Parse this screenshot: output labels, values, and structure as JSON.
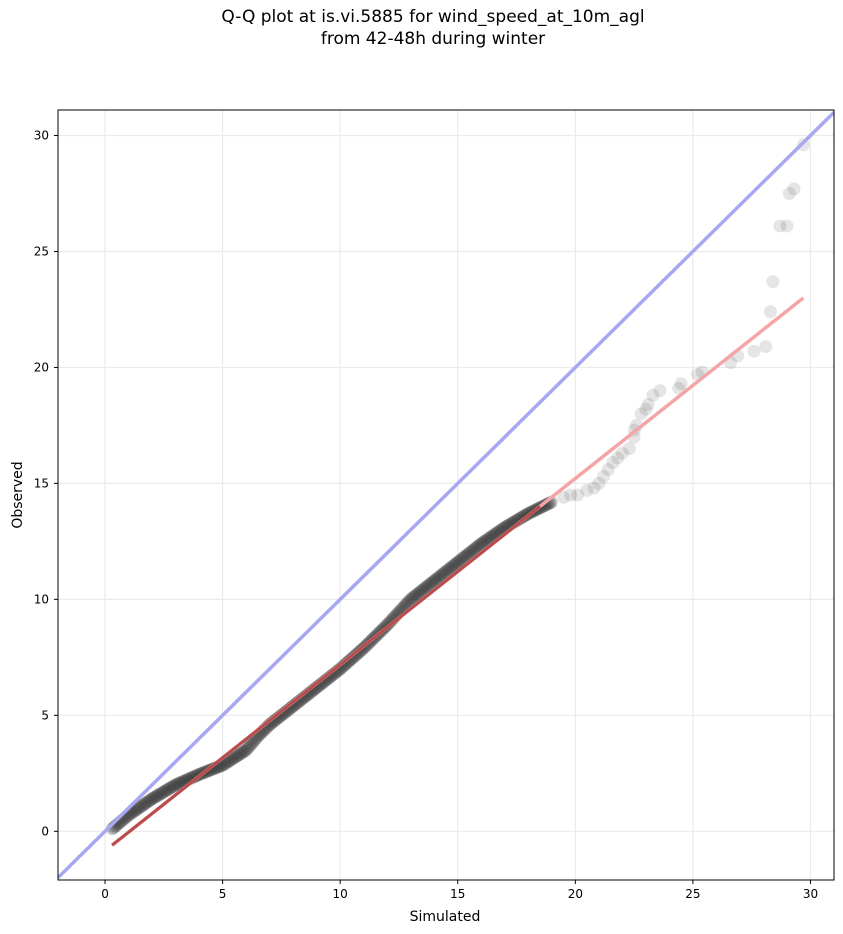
{
  "chart_data": {
    "type": "scatter",
    "title_lines": [
      "Q-Q plot at is.vi.5885 for wind_speed_at_10m_agl",
      "from 42-48h during winter"
    ],
    "xlabel": "Simulated",
    "ylabel": "Observed",
    "xlim": [
      -2,
      31
    ],
    "ylim": [
      -2.1,
      31.1
    ],
    "xticks": [
      0,
      5,
      10,
      15,
      20,
      25,
      30
    ],
    "yticks": [
      0,
      5,
      10,
      15,
      20,
      25,
      30
    ],
    "grid": true,
    "colors": {
      "points": "#333333",
      "identity_line": "#a8a8f2",
      "fit_line": "#f4a6a6",
      "dense_fit_line": "#8b0000",
      "grid": "#ebebeb"
    },
    "identity_line": {
      "x": [
        -2,
        31
      ],
      "y": [
        -2,
        31
      ]
    },
    "fit_line": {
      "x": [
        0.3,
        29.7
      ],
      "y": [
        -0.6,
        23.0
      ]
    },
    "qq_curve": {
      "x": [
        0.3,
        1,
        2,
        3,
        4,
        5,
        6,
        6.5,
        7,
        8,
        9,
        10,
        11,
        12,
        13,
        14,
        15,
        16,
        17,
        18,
        19
      ],
      "y": [
        0.1,
        0.7,
        1.4,
        2.0,
        2.45,
        2.85,
        3.5,
        4.1,
        4.6,
        5.4,
        6.2,
        7.0,
        7.9,
        8.9,
        10.0,
        10.8,
        11.6,
        12.4,
        13.1,
        13.7,
        14.2
      ]
    },
    "tail_points": [
      [
        19.5,
        14.4
      ],
      [
        19.8,
        14.5
      ],
      [
        20.1,
        14.5
      ],
      [
        20.5,
        14.7
      ],
      [
        20.8,
        14.8
      ],
      [
        21.0,
        15.0
      ],
      [
        21.2,
        15.3
      ],
      [
        21.4,
        15.6
      ],
      [
        21.6,
        15.9
      ],
      [
        21.8,
        16.1
      ],
      [
        22.0,
        16.3
      ],
      [
        22.3,
        16.5
      ],
      [
        22.5,
        17.0
      ],
      [
        22.5,
        17.3
      ],
      [
        22.6,
        17.5
      ],
      [
        22.8,
        18.0
      ],
      [
        23.0,
        18.2
      ],
      [
        23.1,
        18.4
      ],
      [
        23.3,
        18.8
      ],
      [
        23.6,
        19.0
      ],
      [
        24.4,
        19.1
      ],
      [
        24.5,
        19.3
      ],
      [
        25.2,
        19.7
      ],
      [
        25.4,
        19.8
      ],
      [
        26.6,
        20.2
      ],
      [
        26.9,
        20.5
      ],
      [
        27.6,
        20.7
      ],
      [
        28.1,
        20.9
      ],
      [
        28.3,
        22.4
      ],
      [
        28.4,
        23.7
      ],
      [
        28.7,
        26.1
      ],
      [
        29.0,
        26.1
      ],
      [
        29.1,
        27.5
      ],
      [
        29.3,
        27.7
      ],
      [
        29.7,
        29.6
      ]
    ]
  }
}
